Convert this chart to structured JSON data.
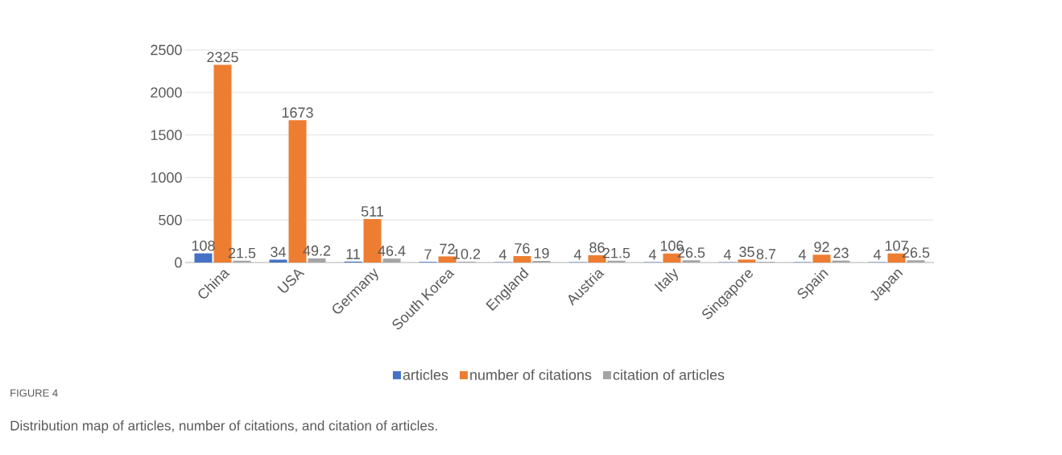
{
  "chart_data": {
    "type": "bar",
    "categories": [
      "China",
      "USA",
      "Germany",
      "South Korea",
      "England",
      "Austria",
      "Italy",
      "Singapore",
      "Spain",
      "Japan"
    ],
    "series": [
      {
        "name": "articles",
        "color": "#4472c4",
        "values": [
          108,
          34,
          11,
          7,
          4,
          4,
          4,
          4,
          4,
          4
        ]
      },
      {
        "name": "number of citations",
        "color": "#ed7d31",
        "values": [
          2325,
          1673,
          511,
          72,
          76,
          86,
          106,
          35,
          92,
          107
        ]
      },
      {
        "name": "citation of articles",
        "color": "#a5a5a5",
        "values": [
          21.5,
          49.2,
          46.4,
          10.2,
          19,
          21.5,
          26.5,
          8.7,
          23,
          26.5
        ]
      }
    ],
    "ylim": [
      0,
      2500
    ],
    "yticks": [
      0,
      500,
      1000,
      1500,
      2000,
      2500
    ],
    "grid": "y",
    "legend": "bottom",
    "data_labels": true,
    "annotations": [
      "FIGURE 4",
      "Distribution map of articles, number of citations, and citation of articles."
    ]
  }
}
